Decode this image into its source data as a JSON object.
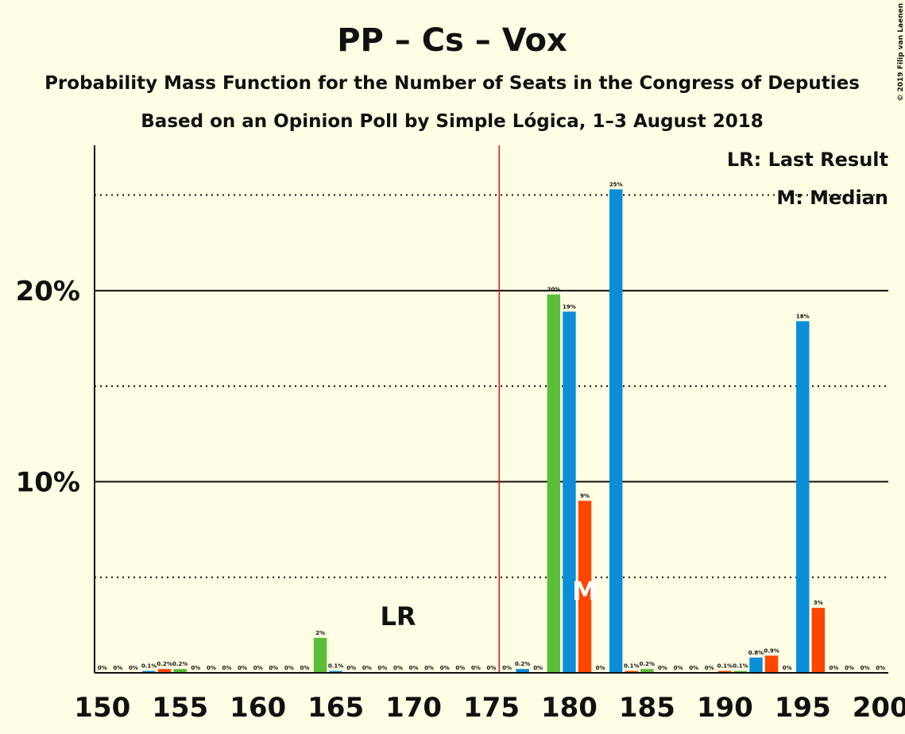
{
  "chart_data": {
    "type": "bar",
    "title": "PP – Cs – Vox",
    "subtitle": "Probability Mass Function for the Number of Seats in the Congress of Deputies",
    "subtitle2": "Based on an Opinion Poll by Simple Lógica, 1–3 August 2018",
    "copyright": "© 2019 Filip van Laenen",
    "legend": [
      "LR: Last Result",
      "M: Median"
    ],
    "x": [
      150,
      151,
      152,
      153,
      154,
      155,
      156,
      157,
      158,
      159,
      160,
      161,
      162,
      163,
      164,
      165,
      166,
      167,
      168,
      169,
      170,
      171,
      172,
      173,
      174,
      175,
      176,
      177,
      178,
      179,
      180,
      181,
      182,
      183,
      184,
      185,
      186,
      187,
      188,
      189,
      190,
      191,
      192,
      193,
      194,
      195,
      196,
      197,
      198,
      199,
      200
    ],
    "values": [
      0,
      0,
      0,
      0.1,
      0.2,
      0.2,
      0,
      0,
      0,
      0,
      0,
      0,
      0,
      0,
      1.83,
      0.1,
      0,
      0,
      0,
      0,
      0,
      0,
      0,
      0,
      0,
      0,
      0,
      0.2,
      0,
      19.8,
      18.9,
      9.0,
      0,
      25.3,
      0.1,
      0.2,
      0,
      0,
      0,
      0,
      0.1,
      0.1,
      0.8,
      0.9,
      0,
      18.4,
      3.4,
      0,
      0,
      0,
      0
    ],
    "value_labels": [
      "0%",
      "0%",
      "0%",
      "0.1%",
      "0.2%",
      "0.2%",
      "0%",
      "0%",
      "0%",
      "0%",
      "0%",
      "0%",
      "0%",
      "0%",
      "2%",
      "0.1%",
      "0%",
      "0%",
      "0%",
      "0%",
      "0%",
      "0%",
      "0%",
      "0%",
      "0%",
      "0%",
      "0%",
      "0.2%",
      "0%",
      "20%",
      "19%",
      "9%",
      "0%",
      "25%",
      "0.1%",
      "0.2%",
      "0%",
      "0%",
      "0%",
      "0%",
      "0.1%",
      "0.1%",
      "0.8%",
      "0.9%",
      "0%",
      "18%",
      "3%",
      "0%",
      "0%",
      "0%",
      "0%"
    ],
    "colors": [
      "#5bbd3a",
      "#0a8ed8",
      "#ff4500",
      "#0a8ed8",
      "#ff4500",
      "#5bbd3a",
      "#0a8ed8",
      "#ff4500",
      "#5bbd3a",
      "#0a8ed8",
      "#ff4500",
      "#5bbd3a",
      "#0a8ed8",
      "#ff4500",
      "#5bbd3a",
      "#0a8ed8",
      "#ff4500",
      "#5bbd3a",
      "#0a8ed8",
      "#ff4500",
      "#5bbd3a",
      "#0a8ed8",
      "#ff4500",
      "#5bbd3a",
      "#0a8ed8",
      "#ff4500",
      "#5bbd3a",
      "#0a8ed8",
      "#ff4500",
      "#5bbd3a",
      "#0a8ed8",
      "#ff4500",
      "#5bbd3a",
      "#0a8ed8",
      "#ff4500",
      "#5bbd3a",
      "#0a8ed8",
      "#ff4500",
      "#5bbd3a",
      "#0a8ed8",
      "#ff4500",
      "#5bbd3a",
      "#0a8ed8",
      "#ff4500",
      "#5bbd3a",
      "#0a8ed8",
      "#ff4500",
      "#5bbd3a",
      "#0a8ed8",
      "#ff4500",
      "#5bbd3a"
    ],
    "xlim": [
      149.5,
      200.5
    ],
    "xticks": [
      150,
      155,
      160,
      165,
      170,
      175,
      180,
      185,
      190,
      195,
      200
    ],
    "ylim": [
      0,
      27.6
    ],
    "yticks": [
      {
        "value": 10,
        "label": "10%"
      },
      {
        "value": 20,
        "label": "20%"
      }
    ],
    "minor_yticks": [
      5,
      15,
      25
    ],
    "majority_line": 175.5,
    "last_result": {
      "label": "LR",
      "x": 169
    },
    "median": {
      "label": "M",
      "x": 181
    }
  }
}
